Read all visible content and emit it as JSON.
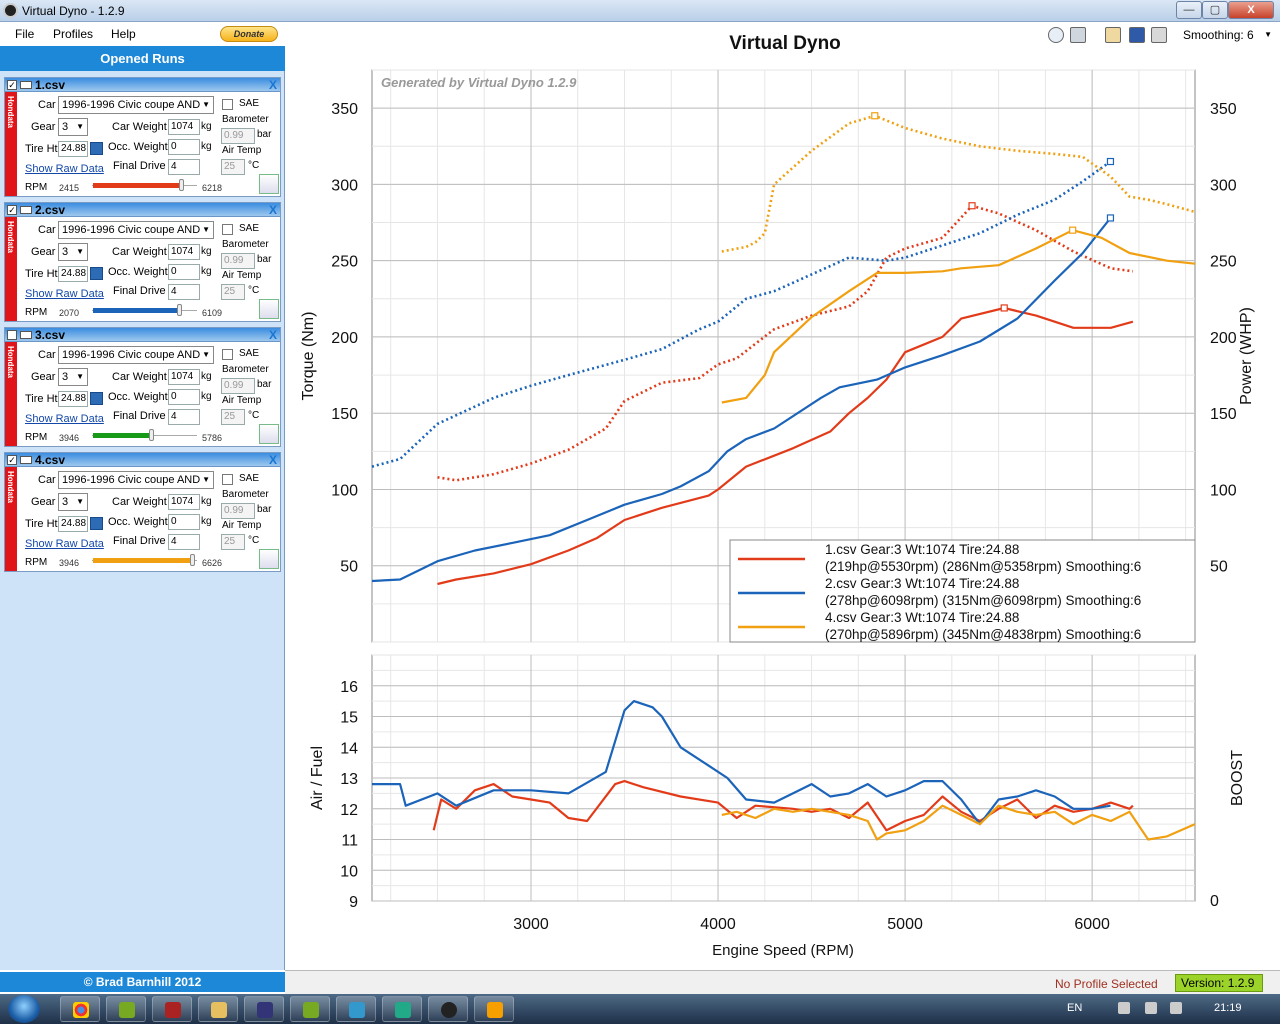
{
  "window": {
    "title": "Virtual Dyno - 1.2.9",
    "min": "—",
    "max": "▢",
    "close": "X"
  },
  "menu": {
    "file": "File",
    "profiles": "Profiles",
    "help": "Help",
    "donate": "Donate"
  },
  "panel": {
    "header": "Opened Runs",
    "credit": "© Brad Barnhill 2012"
  },
  "run_labels": {
    "car": "Car",
    "gear": "Gear",
    "car_weight": "Car Weight",
    "kg": "kg",
    "tire_ht": "Tire Ht",
    "occ_weight": "Occ. Weight",
    "show_raw": "Show Raw Data",
    "final_drive": "Final Drive",
    "rpm": "RPM",
    "sae": "SAE",
    "barometer": "Barometer",
    "bar": "bar",
    "air_temp": "Air Temp",
    "c": "°C",
    "side": "Hondata",
    "close": "X"
  },
  "runs": [
    {
      "file": "1.csv",
      "checked": "✓",
      "car": "1996-1996 Civic coupe AND",
      "gear": "3",
      "car_weight": "1074",
      "tire_ht": "24.88",
      "occ_weight": "0",
      "final_drive": "4",
      "barometer": "0.99",
      "air_temp": "25",
      "rpm_min": "2415",
      "rpm_max": "6218",
      "color": "#e23b1a",
      "fill": 0.89
    },
    {
      "file": "2.csv",
      "checked": "✓",
      "car": "1996-1996 Civic coupe AND",
      "gear": "3",
      "car_weight": "1074",
      "tire_ht": "24.88",
      "occ_weight": "0",
      "final_drive": "4",
      "barometer": "0.99",
      "air_temp": "25",
      "rpm_min": "2070",
      "rpm_max": "6109",
      "color": "#1b64b9",
      "fill": 0.87
    },
    {
      "file": "3.csv",
      "checked": "",
      "car": "1996-1996 Civic coupe AND",
      "gear": "3",
      "car_weight": "1074",
      "tire_ht": "24.88",
      "occ_weight": "0",
      "final_drive": "4",
      "barometer": "0.99",
      "air_temp": "25",
      "rpm_min": "3946",
      "rpm_max": "5786",
      "color": "#169a18",
      "fill": 0.58
    },
    {
      "file": "4.csv",
      "checked": "✓",
      "car": "1996-1996 Civic coupe AND",
      "gear": "3",
      "car_weight": "1074",
      "tire_ht": "24.88",
      "occ_weight": "0",
      "final_drive": "4",
      "barometer": "0.99",
      "air_temp": "25",
      "rpm_min": "3946",
      "rpm_max": "6626",
      "color": "#f0a010",
      "fill": 1.0
    }
  ],
  "toolbar": {
    "smoothing": "Smoothing: 6"
  },
  "status": {
    "profile": "No Profile Selected",
    "version": "Version: 1.2.9"
  },
  "taskbar": {
    "lang": "EN",
    "time": "21:19"
  },
  "chart_data": [
    {
      "type": "line",
      "title": "Virtual Dyno",
      "watermark": "Generated by Virtual Dyno 1.2.9",
      "xlabel": "Engine Speed (RPM)",
      "ylabel": "Torque (Nm)",
      "y2label": "Power (WHP)",
      "xlim": [
        2150,
        6550
      ],
      "ylim": [
        0,
        375
      ],
      "yticks": [
        50,
        100,
        150,
        200,
        250,
        300,
        350
      ],
      "xticks": [
        3000,
        4000,
        5000,
        6000
      ],
      "grid": true,
      "legend_position": "bottom-right",
      "legend": [
        {
          "line1": "1.csv Gear:3 Wt:1074 Tire:24.88",
          "line2": "(219hp@5530rpm) (286Nm@5358rpm) Smoothing:6",
          "color": "#e23b1a"
        },
        {
          "line1": "2.csv Gear:3 Wt:1074 Tire:24.88",
          "line2": "(278hp@6098rpm) (315Nm@6098rpm) Smoothing:6",
          "color": "#1b64b9"
        },
        {
          "line1": "4.csv Gear:3 Wt:1074 Tire:24.88",
          "line2": "(270hp@5896rpm) (345Nm@4838rpm) Smoothing:6",
          "color": "#f0a010"
        }
      ],
      "series": [
        {
          "run": "1.csv",
          "measure": "power",
          "style": "solid",
          "color": "#e23b1a",
          "x": [
            2500,
            2600,
            2800,
            3000,
            3200,
            3350,
            3500,
            3700,
            3950,
            4000,
            4150,
            4400,
            4600,
            4700,
            4800,
            4900,
            5000,
            5200,
            5300,
            5530,
            5700,
            5900,
            6100,
            6218
          ],
          "y": [
            38,
            41,
            45,
            51,
            60,
            68,
            80,
            88,
            96,
            100,
            115,
            127,
            138,
            150,
            160,
            172,
            190,
            200,
            212,
            219,
            214,
            206,
            206,
            210
          ]
        },
        {
          "run": "1.csv",
          "measure": "torque",
          "style": "dotted",
          "color": "#e23b1a",
          "x": [
            2500,
            2600,
            2800,
            3000,
            3200,
            3400,
            3500,
            3700,
            3900,
            4000,
            4100,
            4300,
            4500,
            4700,
            4800,
            4900,
            5000,
            5200,
            5358,
            5500,
            5700,
            5900,
            6100,
            6218
          ],
          "y": [
            108,
            106,
            110,
            117,
            126,
            140,
            158,
            170,
            173,
            182,
            186,
            205,
            214,
            220,
            230,
            252,
            258,
            265,
            286,
            281,
            270,
            256,
            245,
            243
          ]
        },
        {
          "run": "2.csv",
          "measure": "power",
          "style": "solid",
          "color": "#1b64b9",
          "x": [
            2150,
            2300,
            2500,
            2700,
            2900,
            3100,
            3300,
            3500,
            3700,
            3800,
            3950,
            4050,
            4150,
            4300,
            4550,
            4650,
            4850,
            5000,
            5200,
            5400,
            5600,
            5800,
            5950,
            6098
          ],
          "y": [
            40,
            41,
            53,
            60,
            65,
            70,
            80,
            90,
            97,
            102,
            112,
            125,
            133,
            140,
            160,
            167,
            172,
            180,
            188,
            197,
            212,
            237,
            255,
            278
          ]
        },
        {
          "run": "2.csv",
          "measure": "torque",
          "style": "dotted",
          "color": "#1b64b9",
          "x": [
            2150,
            2300,
            2500,
            2800,
            3000,
            3200,
            3500,
            3700,
            3900,
            4000,
            4150,
            4300,
            4500,
            4700,
            4900,
            5000,
            5200,
            5400,
            5600,
            5800,
            5950,
            6098
          ],
          "y": [
            115,
            120,
            143,
            160,
            168,
            175,
            185,
            192,
            205,
            210,
            225,
            230,
            241,
            252,
            250,
            252,
            260,
            268,
            280,
            290,
            302,
            315
          ]
        },
        {
          "run": "4.csv",
          "measure": "power",
          "style": "solid",
          "color": "#f0a010",
          "x": [
            4020,
            4150,
            4250,
            4300,
            4500,
            4700,
            4850,
            5000,
            5200,
            5300,
            5500,
            5700,
            5896,
            6050,
            6200,
            6400,
            6550
          ],
          "y": [
            157,
            160,
            175,
            190,
            213,
            230,
            242,
            242,
            243,
            245,
            247,
            258,
            270,
            265,
            255,
            250,
            248
          ]
        },
        {
          "run": "4.csv",
          "measure": "torque",
          "style": "dotted",
          "color": "#f0a010",
          "x": [
            4020,
            4150,
            4200,
            4250,
            4300,
            4500,
            4700,
            4838,
            5000,
            5200,
            5400,
            5600,
            5800,
            5950,
            6100,
            6200,
            6300,
            6400,
            6550
          ],
          "y": [
            256,
            259,
            262,
            268,
            300,
            322,
            340,
            345,
            337,
            330,
            325,
            322,
            320,
            318,
            305,
            292,
            290,
            287,
            282
          ]
        }
      ]
    },
    {
      "type": "line",
      "ylabel": "Air / Fuel",
      "y2label": "BOOST",
      "y2ticks": [
        0
      ],
      "xlim": [
        2150,
        6550
      ],
      "ylim": [
        9,
        17
      ],
      "yticks": [
        9,
        10,
        11,
        12,
        13,
        14,
        15,
        16
      ],
      "grid": true,
      "series": [
        {
          "run": "1.csv",
          "color": "#e23b1a",
          "x": [
            2480,
            2520,
            2600,
            2700,
            2800,
            2900,
            3000,
            3100,
            3200,
            3300,
            3450,
            3500,
            3600,
            3800,
            4000,
            4100,
            4200,
            4400,
            4500,
            4600,
            4700,
            4800,
            4900,
            5000,
            5100,
            5200,
            5300,
            5400,
            5500,
            5600,
            5700,
            5800,
            5900,
            6000,
            6100,
            6200,
            6218
          ],
          "y": [
            11.3,
            12.3,
            12.0,
            12.6,
            12.8,
            12.4,
            12.3,
            12.2,
            11.7,
            11.6,
            12.8,
            12.9,
            12.7,
            12.4,
            12.2,
            11.7,
            12.1,
            12.0,
            11.9,
            12.0,
            11.7,
            12.2,
            11.3,
            11.6,
            11.8,
            12.4,
            11.9,
            11.6,
            12.0,
            12.3,
            11.7,
            12.1,
            11.9,
            12.0,
            12.2,
            12.0,
            12.1
          ]
        },
        {
          "run": "2.csv",
          "color": "#1b64b9",
          "x": [
            2150,
            2300,
            2330,
            2500,
            2600,
            2800,
            3000,
            3200,
            3400,
            3500,
            3550,
            3650,
            3700,
            3800,
            3950,
            4050,
            4150,
            4300,
            4400,
            4500,
            4600,
            4700,
            4800,
            4900,
            5000,
            5100,
            5200,
            5300,
            5400,
            5500,
            5600,
            5700,
            5800,
            5900,
            6000,
            6098
          ],
          "y": [
            12.8,
            12.8,
            12.1,
            12.5,
            12.1,
            12.6,
            12.6,
            12.5,
            13.2,
            15.2,
            15.5,
            15.3,
            15.0,
            14.0,
            13.4,
            13.0,
            12.3,
            12.2,
            12.5,
            12.8,
            12.4,
            12.5,
            12.8,
            12.4,
            12.6,
            12.9,
            12.9,
            12.3,
            11.5,
            12.3,
            12.4,
            12.6,
            12.4,
            12.0,
            12.0,
            12.1
          ]
        },
        {
          "run": "4.csv",
          "color": "#f0a010",
          "x": [
            4020,
            4100,
            4200,
            4300,
            4400,
            4500,
            4700,
            4800,
            4850,
            4900,
            5000,
            5100,
            5200,
            5300,
            5400,
            5500,
            5600,
            5700,
            5800,
            5900,
            6000,
            6100,
            6200,
            6300,
            6400,
            6550
          ],
          "y": [
            11.8,
            11.9,
            11.7,
            12.0,
            11.9,
            12.0,
            11.8,
            11.6,
            11.0,
            11.2,
            11.3,
            11.6,
            12.1,
            11.8,
            11.5,
            12.1,
            11.9,
            11.8,
            11.9,
            11.5,
            11.8,
            11.6,
            11.9,
            11.0,
            11.1,
            11.5
          ]
        }
      ]
    }
  ]
}
